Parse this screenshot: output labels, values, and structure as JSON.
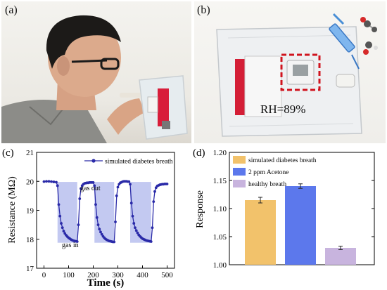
{
  "panels": {
    "a_label": "(a)",
    "b_label": "(b)",
    "b_annotation": "RH=89%"
  },
  "icons": {
    "person_photo": "person-breathing-into-bag",
    "bag_photo": "gas-sampling-bag",
    "syringe": "syringe-icon",
    "molecule": "acetone-molecule-icon"
  },
  "chart_data": [
    {
      "panel_label": "(c)",
      "type": "line",
      "xlabel": "Time (s)",
      "ylabel": "Resistance (MΩ)",
      "xlim": [
        -30,
        530
      ],
      "ylim": [
        17,
        21
      ],
      "xticks": [
        0,
        100,
        200,
        300,
        400,
        500
      ],
      "yticks": [
        17,
        18,
        19,
        20,
        21
      ],
      "legend": "top-right",
      "color": "#2a2aa8",
      "shade_color": "#b8c0ee",
      "annotations": [
        "gas out",
        "gas in"
      ],
      "gas_in_windows": [
        [
          55,
          135
        ],
        [
          205,
          285
        ],
        [
          350,
          435
        ]
      ],
      "series": [
        {
          "name": "simulated diabetes breath",
          "x": [
            0,
            10,
            20,
            30,
            40,
            50,
            55,
            60,
            65,
            70,
            75,
            80,
            85,
            90,
            95,
            100,
            105,
            110,
            115,
            120,
            125,
            130,
            135,
            140,
            145,
            150,
            155,
            160,
            165,
            170,
            175,
            180,
            185,
            190,
            195,
            200,
            205,
            210,
            215,
            220,
            225,
            230,
            235,
            240,
            245,
            250,
            255,
            260,
            265,
            270,
            275,
            280,
            285,
            290,
            295,
            300,
            305,
            310,
            315,
            320,
            325,
            330,
            335,
            340,
            345,
            350,
            355,
            360,
            365,
            370,
            375,
            380,
            385,
            390,
            395,
            400,
            405,
            410,
            415,
            420,
            425,
            430,
            435,
            440,
            445,
            450,
            455,
            460,
            465,
            470,
            475,
            480,
            485,
            490,
            495,
            500
          ],
          "y": [
            19.99,
            20.0,
            20.0,
            19.99,
            19.98,
            19.97,
            19.85,
            19.2,
            18.8,
            18.55,
            18.4,
            18.28,
            18.2,
            18.14,
            18.09,
            18.05,
            18.02,
            17.99,
            17.97,
            17.95,
            17.94,
            17.93,
            17.92,
            18.5,
            19.4,
            19.75,
            19.85,
            19.9,
            19.93,
            19.94,
            19.95,
            19.95,
            19.96,
            19.96,
            19.96,
            19.96,
            19.85,
            19.2,
            18.75,
            18.5,
            18.35,
            18.25,
            18.17,
            18.1,
            18.05,
            18.01,
            17.98,
            17.96,
            17.94,
            17.93,
            17.92,
            17.91,
            17.91,
            18.6,
            19.5,
            19.8,
            19.9,
            19.95,
            19.97,
            19.99,
            20.0,
            20.0,
            20.0,
            19.99,
            19.99,
            19.9,
            19.25,
            18.8,
            18.55,
            18.4,
            18.3,
            18.22,
            18.15,
            18.1,
            18.06,
            18.02,
            18.0,
            17.98,
            17.96,
            17.95,
            17.94,
            17.93,
            17.92,
            18.4,
            19.3,
            19.65,
            19.78,
            19.84,
            19.86,
            19.88,
            19.89,
            19.9,
            19.9,
            19.91,
            19.91,
            19.91
          ]
        }
      ]
    },
    {
      "panel_label": "(d)",
      "type": "bar",
      "ylabel": "Response",
      "ylim": [
        1.0,
        1.2
      ],
      "yticks": [
        1.0,
        1.05,
        1.1,
        1.15,
        1.2
      ],
      "legend": "top-left",
      "series": [
        {
          "name": "simulated diabetes breath",
          "value": 1.115,
          "error": 0.005,
          "color": "#f2c26b"
        },
        {
          "name": "2 ppm Acetone",
          "value": 1.14,
          "error": 0.004,
          "color": "#5c78ec"
        },
        {
          "name": "healthy breath",
          "value": 1.03,
          "error": 0.003,
          "color": "#c8b4de"
        }
      ]
    }
  ]
}
